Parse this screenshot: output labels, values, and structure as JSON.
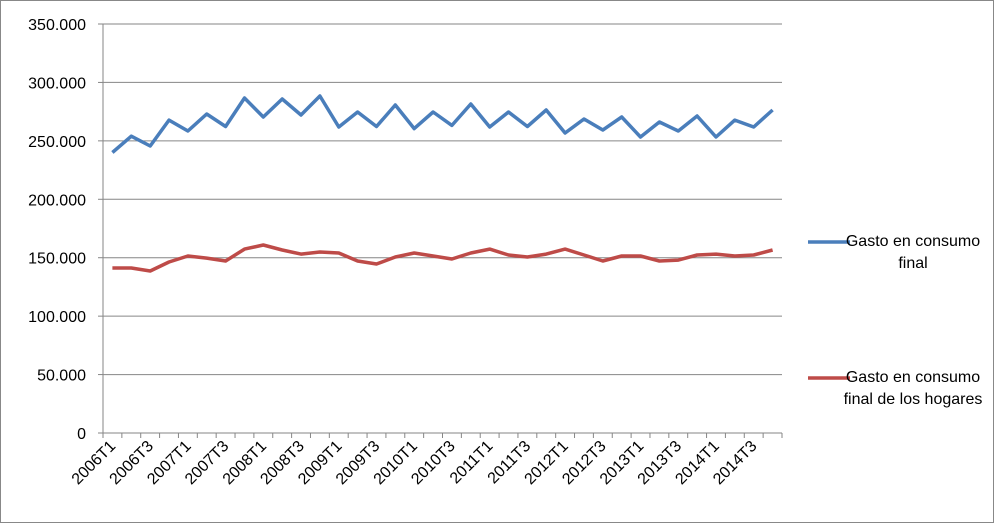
{
  "chart_data": {
    "type": "line",
    "categories": [
      "2006T1",
      null,
      "2006T3",
      null,
      "2007T1",
      null,
      "2007T3",
      null,
      "2008T1",
      null,
      "2008T3",
      null,
      "2009T1",
      null,
      "2009T3",
      null,
      "2010T1",
      null,
      "2010T3",
      null,
      "2011T1",
      null,
      "2011T3",
      null,
      "2012T1",
      null,
      "2012T3",
      null,
      "2013T1",
      null,
      "2013T3",
      null,
      "2014T1",
      null,
      "2014T3",
      null
    ],
    "series": [
      {
        "name": "Gasto en consumo final",
        "color": "#4a7ebb",
        "values": [
          240000,
          254000,
          245600,
          267800,
          258400,
          273000,
          262300,
          286700,
          270400,
          285800,
          272100,
          288400,
          261900,
          274700,
          262300,
          280700,
          260500,
          274700,
          263200,
          281500,
          261900,
          274700,
          262300,
          276400,
          256700,
          268700,
          259300,
          270400,
          253300,
          266100,
          258400,
          271300,
          253300,
          267800,
          261900,
          276400
        ]
      },
      {
        "name": "Gasto en consumo final de los hogares",
        "color": "#be4b48",
        "values": [
          141200,
          141200,
          138600,
          146300,
          151500,
          149700,
          147200,
          157400,
          160900,
          156600,
          153100,
          154900,
          154000,
          147200,
          144600,
          150600,
          154000,
          151500,
          148900,
          154000,
          157400,
          152300,
          150600,
          153100,
          157400,
          152300,
          147200,
          151500,
          151500,
          147200,
          148000,
          152300,
          153100,
          151500,
          152300,
          156600
        ]
      }
    ],
    "ylim": [
      0,
      350000
    ],
    "yticks": [
      0,
      {
        "value": 50000,
        "label": "50.000"
      },
      {
        "value": 100000,
        "label": "100.000"
      },
      {
        "value": 150000,
        "label": "150.000"
      },
      {
        "value": 200000,
        "label": "200.000"
      },
      {
        "value": 250000,
        "label": "250.000"
      },
      {
        "value": 300000,
        "label": "300.000"
      },
      {
        "value": 350000,
        "label": "350.000"
      }
    ],
    "grid": true,
    "legend": "right"
  }
}
